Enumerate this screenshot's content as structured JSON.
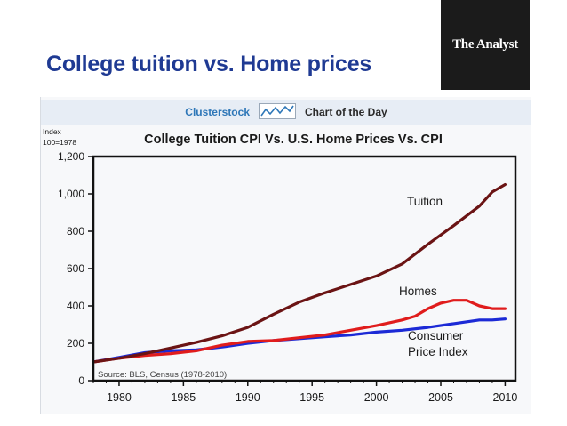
{
  "slide": {
    "title": "College tuition vs. Home prices",
    "brand": "The Analyst"
  },
  "banner": {
    "site": "Clusterstock",
    "spark_icon": "trend-line-icon",
    "label": "Chart of the Day"
  },
  "chart_data": {
    "type": "line",
    "title": "College Tuition CPI Vs. U.S. Home Prices Vs. CPI",
    "ylabel": "Index\n100=1978",
    "source": "Source: BLS, Census (1978-2010)",
    "xlim": [
      1978,
      2010.8
    ],
    "ylim": [
      0,
      1200
    ],
    "xticks": [
      1980,
      1985,
      1990,
      1995,
      2000,
      2005,
      2010
    ],
    "yticks": [
      0,
      200,
      400,
      600,
      800,
      1000,
      1200
    ],
    "ytick_labels": [
      "0",
      "200",
      "400",
      "600",
      "800",
      "1,000",
      "1,200"
    ],
    "grid": false,
    "series": [
      {
        "name": "Tuition",
        "color": "#6b1414",
        "x": [
          1978,
          1980,
          1982,
          1984,
          1986,
          1988,
          1990,
          1992,
          1994,
          1996,
          1998,
          2000,
          2002,
          2004,
          2006,
          2008,
          2009,
          2010
        ],
        "y": [
          100,
          120,
          145,
          175,
          205,
          240,
          285,
          355,
          420,
          470,
          515,
          560,
          625,
          730,
          830,
          935,
          1010,
          1050
        ]
      },
      {
        "name": "Homes",
        "color": "#e01c1c",
        "x": [
          1978,
          1980,
          1982,
          1984,
          1986,
          1988,
          1990,
          1992,
          1994,
          1996,
          1998,
          2000,
          2002,
          2003,
          2004,
          2005,
          2006,
          2007,
          2008,
          2009,
          2010
        ],
        "y": [
          100,
          120,
          135,
          145,
          160,
          190,
          210,
          215,
          230,
          245,
          270,
          295,
          325,
          345,
          385,
          415,
          430,
          430,
          400,
          385,
          385
        ]
      },
      {
        "name": "Consumer\nPrice Index",
        "color": "#1c2ad6",
        "x": [
          1978,
          1980,
          1982,
          1984,
          1986,
          1988,
          1990,
          1992,
          1994,
          1996,
          1998,
          2000,
          2002,
          2004,
          2006,
          2008,
          2009,
          2010
        ],
        "y": [
          100,
          125,
          150,
          160,
          165,
          180,
          200,
          215,
          225,
          235,
          245,
          260,
          270,
          285,
          305,
          325,
          325,
          330
        ]
      }
    ]
  }
}
